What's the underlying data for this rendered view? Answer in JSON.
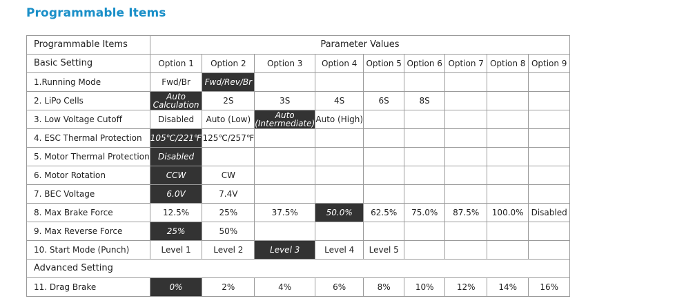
{
  "title": "Programmable Items",
  "table": {
    "header_items": "Programmable Items",
    "header_values": "Parameter Values",
    "basic_label": "Basic Setting",
    "options": [
      "Option 1",
      "Option 2",
      "Option 3",
      "Option 4",
      "Option 5",
      "Option 6",
      "Option 7",
      "Option 8",
      "Option 9"
    ],
    "advanced_label": "Advanced Setting",
    "selected_color": "#333333",
    "rows": [
      {
        "label": "1.Running Mode",
        "values": [
          "Fwd/Br",
          "Fwd/Rev/Br",
          "",
          "",
          "",
          "",
          "",
          "",
          ""
        ],
        "selected": 1
      },
      {
        "label": "2. LiPo Cells",
        "values": [
          "Auto Calculation",
          "2S",
          "3S",
          "4S",
          "6S",
          "8S",
          "",
          "",
          ""
        ],
        "selected": 0
      },
      {
        "label": "3. Low Voltage Cutoff",
        "values": [
          "Disabled",
          "Auto (Low)",
          "Auto (Intermediate)",
          "Auto (High)",
          "",
          "",
          "",
          "",
          ""
        ],
        "selected": 2
      },
      {
        "label": "4. ESC Thermal Protection",
        "values": [
          "105℃/221℉",
          "125℃/257℉",
          "",
          "",
          "",
          "",
          "",
          "",
          ""
        ],
        "selected": 0
      },
      {
        "label": "5. Motor Thermal Protection",
        "values": [
          "Disabled",
          "",
          "",
          "",
          "",
          "",
          "",
          "",
          ""
        ],
        "selected": 0
      },
      {
        "label": "6. Motor Rotation",
        "values": [
          "CCW",
          "CW",
          "",
          "",
          "",
          "",
          "",
          "",
          ""
        ],
        "selected": 0
      },
      {
        "label": "7. BEC Voltage",
        "values": [
          "6.0V",
          "7.4V",
          "",
          "",
          "",
          "",
          "",
          "",
          ""
        ],
        "selected": 0
      },
      {
        "label": "8. Max Brake Force",
        "values": [
          "12.5%",
          "25%",
          "37.5%",
          "50.0%",
          "62.5%",
          "75.0%",
          "87.5%",
          "100.0%",
          "Disabled"
        ],
        "selected": 3
      },
      {
        "label": "9. Max Reverse Force",
        "values": [
          "25%",
          "50%",
          "",
          "",
          "",
          "",
          "",
          "",
          ""
        ],
        "selected": 0
      },
      {
        "label": "10. Start Mode (Punch)",
        "values": [
          "Level 1",
          "Level 2",
          "Level 3",
          "Level 4",
          "Level 5",
          "",
          "",
          "",
          ""
        ],
        "selected": 2
      }
    ],
    "advanced_rows": [
      {
        "label": "11. Drag Brake",
        "values": [
          "0%",
          "2%",
          "4%",
          "6%",
          "8%",
          "10%",
          "12%",
          "14%",
          "16%"
        ],
        "selected": 0
      }
    ]
  }
}
